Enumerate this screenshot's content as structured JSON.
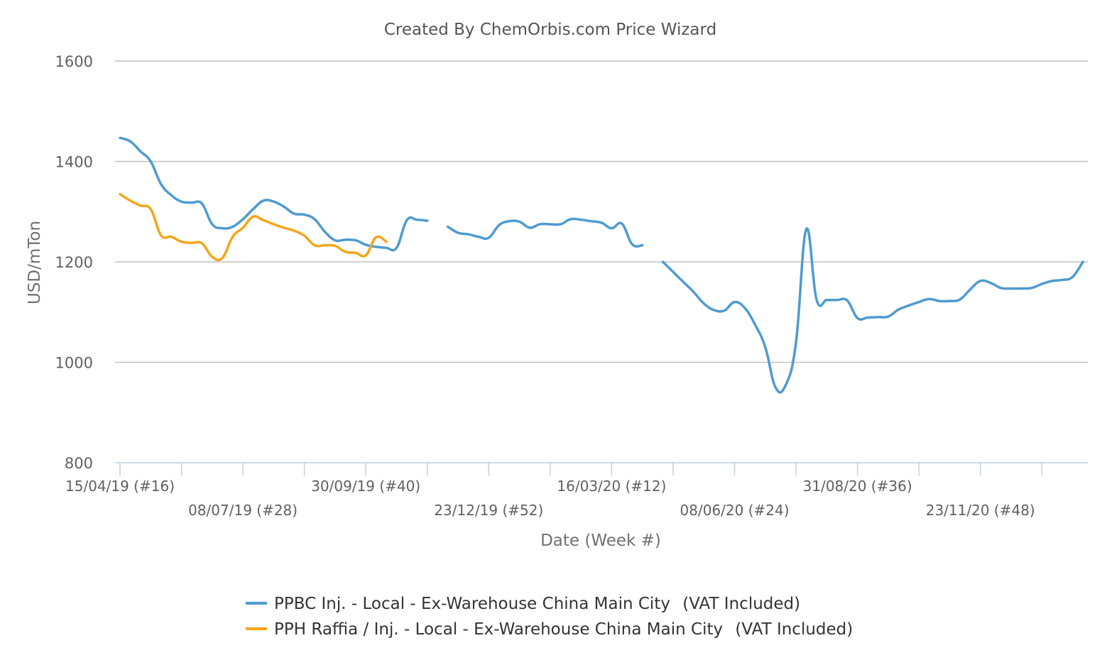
{
  "chart_data": {
    "type": "line",
    "title": "Created By ChemOrbis.com Price Wizard",
    "xlabel": "Date (Week #)",
    "ylabel": "USD/mTon",
    "ylim": [
      800,
      1600
    ],
    "yticks": [
      800,
      1000,
      1200,
      1400,
      1600
    ],
    "x_range": [
      "2019-04-15",
      "2021-02-01"
    ],
    "xtick_labels": [
      {
        "date": "2019-04-15",
        "label": "15/04/19 (#16)",
        "row": 1
      },
      {
        "date": "2019-07-08",
        "label": "08/07/19 (#28)",
        "row": 2
      },
      {
        "date": "2019-09-30",
        "label": "30/09/19 (#40)",
        "row": 1
      },
      {
        "date": "2019-12-23",
        "label": "23/12/19 (#52)",
        "row": 2
      },
      {
        "date": "2020-03-16",
        "label": "16/03/20 (#12)",
        "row": 1
      },
      {
        "date": "2020-06-08",
        "label": "08/06/20 (#24)",
        "row": 2
      },
      {
        "date": "2020-08-31",
        "label": "31/08/20 (#36)",
        "row": 1
      },
      {
        "date": "2020-11-23",
        "label": "23/11/20 (#48)",
        "row": 2
      }
    ],
    "grid": true,
    "legend_position": "bottom",
    "series": [
      {
        "name": "PPBC Inj. - Local - Ex-Warehouse China Main City (VAT Included)",
        "color": "#4f9bd0",
        "segments": [
          [
            [
              "2019-04-15",
              1447
            ],
            [
              "2019-04-22",
              1440
            ],
            [
              "2019-04-29",
              1420
            ],
            [
              "2019-05-06",
              1400
            ],
            [
              "2019-05-13",
              1355
            ],
            [
              "2019-05-20",
              1333
            ],
            [
              "2019-05-27",
              1320
            ],
            [
              "2019-06-03",
              1318
            ],
            [
              "2019-06-10",
              1316
            ],
            [
              "2019-06-17",
              1275
            ],
            [
              "2019-06-24",
              1267
            ],
            [
              "2019-07-01",
              1270
            ],
            [
              "2019-07-08",
              1285
            ],
            [
              "2019-07-15",
              1305
            ],
            [
              "2019-07-22",
              1322
            ],
            [
              "2019-07-29",
              1320
            ],
            [
              "2019-08-05",
              1310
            ],
            [
              "2019-08-12",
              1296
            ],
            [
              "2019-08-19",
              1294
            ],
            [
              "2019-08-26",
              1285
            ],
            [
              "2019-09-02",
              1260
            ],
            [
              "2019-09-09",
              1243
            ],
            [
              "2019-09-16",
              1244
            ],
            [
              "2019-09-23",
              1243
            ],
            [
              "2019-09-30",
              1234
            ],
            [
              "2019-10-07",
              1230
            ],
            [
              "2019-10-14",
              1228
            ],
            [
              "2019-10-21",
              1228
            ],
            [
              "2019-10-28",
              1283
            ],
            [
              "2019-11-04",
              1284
            ],
            [
              "2019-11-11",
              1282
            ]
          ],
          [
            [
              "2019-11-25",
              1270
            ],
            [
              "2019-12-02",
              1258
            ],
            [
              "2019-12-09",
              1255
            ],
            [
              "2019-12-16",
              1250
            ],
            [
              "2019-12-23",
              1248
            ],
            [
              "2019-12-30",
              1273
            ],
            [
              "2020-01-06",
              1281
            ],
            [
              "2020-01-13",
              1280
            ],
            [
              "2020-01-20",
              1268
            ],
            [
              "2020-01-27",
              1275
            ],
            [
              "2020-02-03",
              1275
            ],
            [
              "2020-02-10",
              1275
            ],
            [
              "2020-02-17",
              1285
            ],
            [
              "2020-02-24",
              1284
            ],
            [
              "2020-03-02",
              1281
            ],
            [
              "2020-03-09",
              1278
            ],
            [
              "2020-03-16",
              1267
            ],
            [
              "2020-03-23",
              1276
            ],
            [
              "2020-03-30",
              1235
            ],
            [
              "2020-04-06",
              1233
            ]
          ],
          [
            [
              "2020-04-20",
              1200
            ],
            [
              "2020-04-27",
              1180
            ],
            [
              "2020-05-04",
              1160
            ],
            [
              "2020-05-11",
              1140
            ],
            [
              "2020-05-18",
              1117
            ],
            [
              "2020-05-25",
              1104
            ],
            [
              "2020-06-01",
              1103
            ],
            [
              "2020-06-08",
              1120
            ],
            [
              "2020-06-15",
              1108
            ],
            [
              "2020-06-22",
              1075
            ],
            [
              "2020-06-29",
              1030
            ],
            [
              "2020-07-06",
              950
            ],
            [
              "2020-07-13",
              955
            ],
            [
              "2020-07-20",
              1040
            ],
            [
              "2020-07-27",
              1265
            ],
            [
              "2020-08-03",
              1125
            ],
            [
              "2020-08-10",
              1124
            ],
            [
              "2020-08-17",
              1124
            ],
            [
              "2020-08-24",
              1123
            ],
            [
              "2020-08-31",
              1088
            ],
            [
              "2020-09-07",
              1089
            ],
            [
              "2020-09-14",
              1090
            ],
            [
              "2020-09-21",
              1091
            ],
            [
              "2020-09-28",
              1105
            ],
            [
              "2020-10-05",
              1113
            ],
            [
              "2020-10-12",
              1120
            ],
            [
              "2020-10-19",
              1126
            ],
            [
              "2020-10-26",
              1122
            ],
            [
              "2020-11-02",
              1122
            ],
            [
              "2020-11-09",
              1125
            ],
            [
              "2020-11-16",
              1145
            ],
            [
              "2020-11-23",
              1162
            ],
            [
              "2020-11-30",
              1158
            ],
            [
              "2020-12-07",
              1148
            ],
            [
              "2020-12-14",
              1147
            ],
            [
              "2020-12-21",
              1147
            ],
            [
              "2020-12-28",
              1148
            ],
            [
              "2021-01-04",
              1156
            ],
            [
              "2021-01-11",
              1162
            ],
            [
              "2021-01-18",
              1164
            ],
            [
              "2021-01-25",
              1170
            ],
            [
              "2021-02-01",
              1200
            ]
          ]
        ]
      },
      {
        "name": "PPH Raffia / Inj. - Local - Ex-Warehouse China Main City (VAT Included)",
        "color": "#f5a51c",
        "segments": [
          [
            [
              "2019-04-15",
              1335
            ],
            [
              "2019-04-22",
              1322
            ],
            [
              "2019-04-29",
              1312
            ],
            [
              "2019-05-06",
              1305
            ],
            [
              "2019-05-13",
              1253
            ],
            [
              "2019-05-20",
              1250
            ],
            [
              "2019-05-27",
              1240
            ],
            [
              "2019-06-03",
              1238
            ],
            [
              "2019-06-10",
              1237
            ],
            [
              "2019-06-17",
              1210
            ],
            [
              "2019-06-24",
              1208
            ],
            [
              "2019-07-01",
              1250
            ],
            [
              "2019-07-08",
              1268
            ],
            [
              "2019-07-15",
              1290
            ],
            [
              "2019-07-22",
              1283
            ],
            [
              "2019-07-29",
              1275
            ],
            [
              "2019-08-05",
              1268
            ],
            [
              "2019-08-12",
              1262
            ],
            [
              "2019-08-19",
              1252
            ],
            [
              "2019-08-26",
              1233
            ],
            [
              "2019-09-02",
              1233
            ],
            [
              "2019-09-09",
              1232
            ],
            [
              "2019-09-16",
              1220
            ],
            [
              "2019-09-23",
              1218
            ],
            [
              "2019-09-30",
              1213
            ],
            [
              "2019-10-07",
              1249
            ],
            [
              "2019-10-14",
              1240
            ]
          ]
        ]
      }
    ]
  },
  "legend": {
    "items": [
      {
        "name": "PPBC Inj. - Local - Ex-Warehouse China Main City",
        "suffix": "(VAT Included)",
        "color": "#4f9bd0"
      },
      {
        "name": "PPH Raffia / Inj. - Local - Ex-Warehouse China Main City",
        "suffix": "(VAT Included)",
        "color": "#f5a51c"
      }
    ]
  }
}
